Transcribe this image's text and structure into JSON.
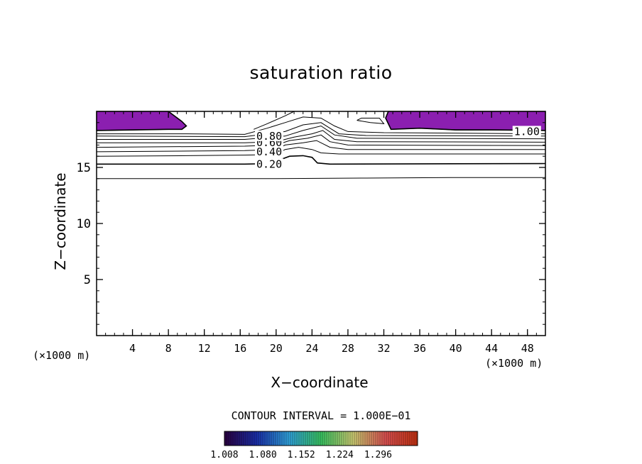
{
  "chart_data": {
    "type": "contour",
    "title": "saturation ratio",
    "xlabel": "X−coordinate",
    "ylabel": "Z−coordinate",
    "x_unit_label": "(×1000 m)",
    "xlim": [
      0,
      50
    ],
    "ylim": [
      0,
      20
    ],
    "x_ticks": [
      4,
      8,
      12,
      16,
      20,
      24,
      28,
      32,
      36,
      40,
      44,
      48
    ],
    "y_ticks": [
      5,
      10,
      15
    ],
    "contour_interval_label": "CONTOUR INTERVAL = 1.000E−01",
    "contour_labels": [
      {
        "text": "0.20",
        "x": 17.8,
        "y": 15.3
      },
      {
        "text": "0.40",
        "x": 17.8,
        "y": 16.4
      },
      {
        "text": "0.60",
        "x": 17.8,
        "y": 17.2
      },
      {
        "text": "0.80",
        "x": 17.8,
        "y": 17.8
      },
      {
        "text": "1.00",
        "x": 46.5,
        "y": 18.2
      }
    ],
    "contour_lines": [
      {
        "level": 0.1,
        "points": [
          [
            0,
            14.0
          ],
          [
            20,
            14.0
          ],
          [
            30,
            14.05
          ],
          [
            40,
            14.1
          ],
          [
            50,
            14.1
          ]
        ]
      },
      {
        "level": 0.2,
        "points": [
          [
            0,
            15.3
          ],
          [
            16.5,
            15.3
          ],
          [
            19.5,
            15.35
          ],
          [
            20.5,
            15.7
          ],
          [
            21.5,
            16.0
          ],
          [
            23,
            16.05
          ],
          [
            24,
            15.9
          ],
          [
            24.6,
            15.4
          ],
          [
            26,
            15.3
          ],
          [
            50,
            15.35
          ]
        ]
      },
      {
        "level": 0.3,
        "points": [
          [
            0,
            16.0
          ],
          [
            10,
            16.05
          ],
          [
            16.5,
            16.1
          ],
          [
            20,
            16.15
          ],
          [
            21,
            16.6
          ],
          [
            22.5,
            16.8
          ],
          [
            24,
            16.6
          ],
          [
            25,
            16.3
          ],
          [
            27,
            16.2
          ],
          [
            50,
            16.2
          ]
        ]
      },
      {
        "level": 0.4,
        "points": [
          [
            0,
            16.4
          ],
          [
            16.5,
            16.5
          ],
          [
            20,
            16.6
          ],
          [
            21,
            17.0
          ],
          [
            23,
            17.2
          ],
          [
            24.5,
            17.4
          ],
          [
            26,
            16.8
          ],
          [
            28,
            16.6
          ],
          [
            50,
            16.6
          ]
        ]
      },
      {
        "level": 0.5,
        "points": [
          [
            0,
            16.8
          ],
          [
            16.5,
            16.9
          ],
          [
            20,
            17.0
          ],
          [
            21.5,
            17.4
          ],
          [
            23.5,
            17.6
          ],
          [
            25,
            17.9
          ],
          [
            26,
            17.3
          ],
          [
            28,
            17.0
          ],
          [
            50,
            16.95
          ]
        ]
      },
      {
        "level": 0.6,
        "points": [
          [
            0,
            17.2
          ],
          [
            16.5,
            17.2
          ],
          [
            20,
            17.3
          ],
          [
            22,
            17.7
          ],
          [
            24,
            18.0
          ],
          [
            25.2,
            18.3
          ],
          [
            26.5,
            17.5
          ],
          [
            29,
            17.3
          ],
          [
            50,
            17.25
          ]
        ]
      },
      {
        "level": 0.7,
        "points": [
          [
            0,
            17.5
          ],
          [
            16.5,
            17.5
          ],
          [
            21,
            17.8
          ],
          [
            23,
            18.3
          ],
          [
            25,
            18.7
          ],
          [
            26.5,
            17.9
          ],
          [
            29,
            17.6
          ],
          [
            50,
            17.55
          ]
        ]
      },
      {
        "level": 0.8,
        "points": [
          [
            0,
            17.8
          ],
          [
            16.5,
            17.75
          ],
          [
            21,
            18.2
          ],
          [
            23,
            18.8
          ],
          [
            25,
            19.0
          ],
          [
            26,
            18.5
          ],
          [
            27,
            18.0
          ],
          [
            30,
            17.85
          ],
          [
            50,
            17.8
          ]
        ]
      },
      {
        "level": 0.9,
        "points": [
          [
            0,
            18.0
          ],
          [
            10,
            18.0
          ],
          [
            16.5,
            17.95
          ],
          [
            19,
            18.5
          ],
          [
            21,
            19.0
          ],
          [
            23,
            19.5
          ],
          [
            25,
            19.4
          ],
          [
            26.5,
            18.7
          ],
          [
            28,
            18.2
          ],
          [
            32,
            18.1
          ],
          [
            50,
            18.0
          ]
        ]
      },
      {
        "level": 1.0,
        "points": [
          [
            0,
            18.3
          ],
          [
            8,
            18.4
          ],
          [
            9.5,
            18.4
          ],
          [
            10,
            18.7
          ],
          [
            9.5,
            19.1
          ],
          [
            8,
            20.0
          ]
        ]
      },
      {
        "level": 1.0,
        "points": [
          [
            32.5,
            20.0
          ],
          [
            32.2,
            19.4
          ],
          [
            32.8,
            18.4
          ],
          [
            36,
            18.5
          ],
          [
            40,
            18.35
          ],
          [
            44,
            18.35
          ],
          [
            50,
            18.3
          ]
        ]
      },
      {
        "level": 0.95,
        "points": [
          [
            17.5,
            18.4
          ],
          [
            19,
            18.9
          ],
          [
            21,
            19.6
          ],
          [
            22,
            20.0
          ]
        ]
      },
      {
        "level": 0.95,
        "points": [
          [
            29,
            19.2
          ],
          [
            30.5,
            19.0
          ],
          [
            32,
            18.9
          ],
          [
            31.5,
            19.4
          ],
          [
            29.5,
            19.4
          ],
          [
            29,
            19.2
          ]
        ]
      }
    ],
    "filled_regions": [
      {
        "min_level": 1.008,
        "color": "#8b1fb0",
        "points": [
          [
            0,
            20.0
          ],
          [
            8,
            20.0
          ],
          [
            9.5,
            19.1
          ],
          [
            10,
            18.7
          ],
          [
            9.5,
            18.4
          ],
          [
            8,
            18.4
          ],
          [
            0,
            18.3
          ]
        ]
      },
      {
        "min_level": 1.008,
        "color": "#8b1fb0",
        "points": [
          [
            32.5,
            20.0
          ],
          [
            50,
            20.0
          ],
          [
            50,
            18.3
          ],
          [
            44,
            18.35
          ],
          [
            40,
            18.35
          ],
          [
            36,
            18.5
          ],
          [
            32.8,
            18.4
          ],
          [
            32.2,
            19.4
          ]
        ]
      }
    ],
    "colorbar": {
      "tick_labels": [
        "1.008",
        "1.080",
        "1.152",
        "1.224",
        "1.296"
      ],
      "range": [
        1.008,
        1.37
      ],
      "stops": [
        "#2a003f",
        "#1a2ea8",
        "#2f9fd8",
        "#38c060",
        "#c8c870",
        "#d85050",
        "#c03010"
      ]
    }
  }
}
